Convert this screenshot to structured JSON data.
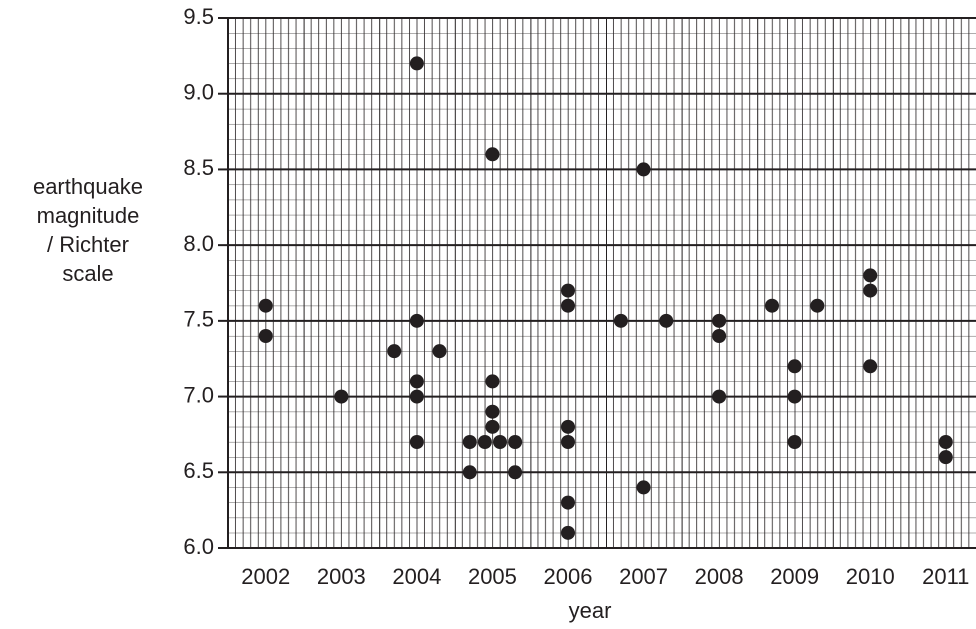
{
  "chart_data": {
    "type": "scatter",
    "x_label": "year",
    "y_label": [
      "earthquake",
      "magnitude",
      "/ Richter",
      "scale"
    ],
    "x": [
      2002,
      2002,
      2003,
      2003.7,
      2004,
      2004,
      2004,
      2004,
      2004,
      2004.3,
      2004.7,
      2004.7,
      2004.9,
      2005,
      2005,
      2005,
      2005,
      2005.1,
      2005.3,
      2005.3,
      2006,
      2006,
      2006,
      2006,
      2006,
      2006,
      2006.7,
      2007,
      2007,
      2007.3,
      2008,
      2008,
      2008,
      2008.7,
      2009,
      2009,
      2009,
      2009.3,
      2010,
      2010,
      2010,
      2011,
      2011
    ],
    "y": [
      7.6,
      7.4,
      7.0,
      7.3,
      9.2,
      7.5,
      7.1,
      7.0,
      6.7,
      7.3,
      6.7,
      6.5,
      6.7,
      8.6,
      7.1,
      6.9,
      6.8,
      6.7,
      6.7,
      6.5,
      7.7,
      7.6,
      6.8,
      6.7,
      6.3,
      6.1,
      7.5,
      8.5,
      6.4,
      7.5,
      7.5,
      7.4,
      7.0,
      7.6,
      7.2,
      7.0,
      6.7,
      7.6,
      7.8,
      7.7,
      7.2,
      6.7,
      6.6
    ],
    "color": "#231f20",
    "xlim": [
      2001.5,
      2011.4
    ],
    "ylim": [
      6.0,
      9.5
    ],
    "xticks": [
      2002,
      2003,
      2004,
      2005,
      2006,
      2007,
      2008,
      2009,
      2010,
      2011
    ],
    "yticks": [
      {
        "value": 6,
        "label": "6.0"
      },
      6.5,
      {
        "value": 7,
        "label": "7.0"
      },
      7.5,
      {
        "value": 8,
        "label": "8.0"
      },
      8.5,
      {
        "value": 9,
        "label": "9.0"
      },
      9.5
    ],
    "grid": true
  }
}
